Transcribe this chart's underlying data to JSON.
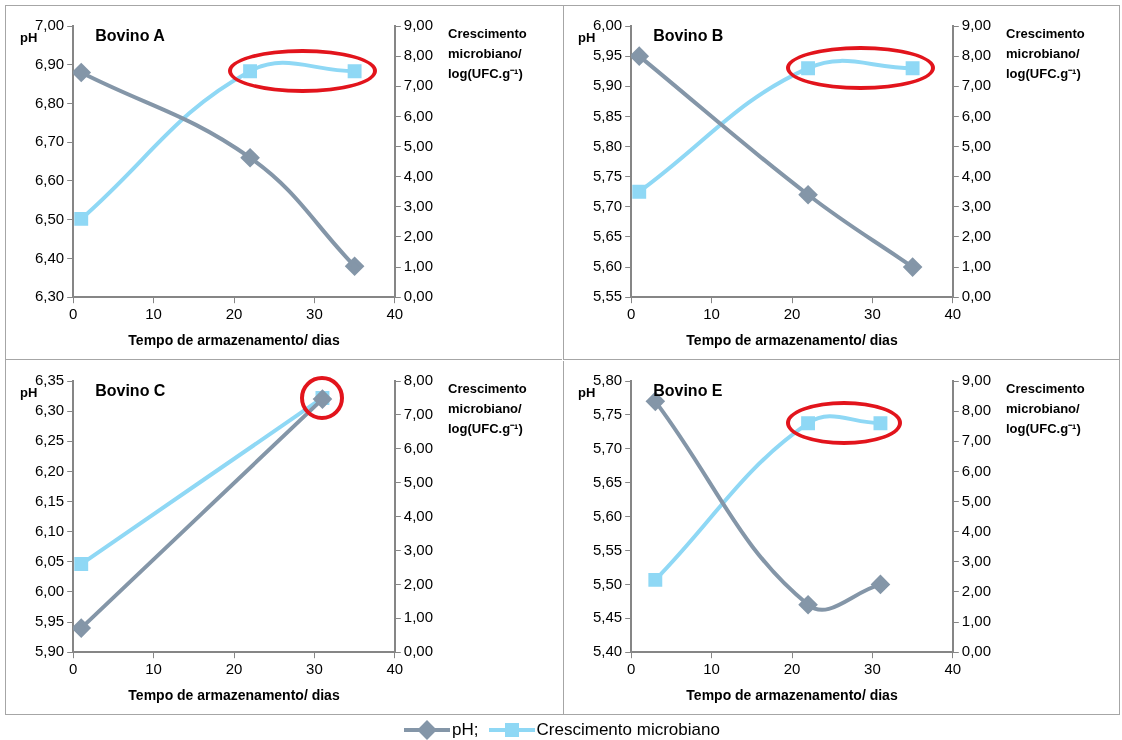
{
  "chart_data": [
    {
      "type": "line",
      "title": "Bovino A",
      "xlabel": "Tempo de armazenamento/ dias",
      "ylabel": "pH",
      "y2label": "Crescimento microbiano/ log(UFC.g⁻¹)",
      "xlim": [
        0,
        40
      ],
      "xticks": [
        0,
        10,
        20,
        30,
        40
      ],
      "ylim": [
        6.3,
        7.0
      ],
      "yticks": [
        {
          "value": 6.3,
          "label": "6,30"
        },
        {
          "value": 6.4,
          "label": "6,40"
        },
        {
          "value": 6.5,
          "label": "6,50"
        },
        {
          "value": 6.6,
          "label": "6,60"
        },
        {
          "value": 6.7,
          "label": "6,70"
        },
        {
          "value": 6.8,
          "label": "6,80"
        },
        {
          "value": 6.9,
          "label": "6,90"
        },
        {
          "value": 7.0,
          "label": "7,00"
        }
      ],
      "y2lim": [
        0,
        9
      ],
      "y2ticks": [
        {
          "value": 0,
          "label": "0,00"
        },
        {
          "value": 1,
          "label": "1,00"
        },
        {
          "value": 2,
          "label": "2,00"
        },
        {
          "value": 3,
          "label": "3,00"
        },
        {
          "value": 4,
          "label": "4,00"
        },
        {
          "value": 5,
          "label": "5,00"
        },
        {
          "value": 6,
          "label": "6,00"
        },
        {
          "value": 7,
          "label": "7,00"
        },
        {
          "value": 8,
          "label": "8,00"
        },
        {
          "value": 9,
          "label": "9,00"
        }
      ],
      "grid": false,
      "legend": "bottom",
      "series": [
        {
          "name": "pH;",
          "color": "#8496a8",
          "marker": "diamond",
          "x": [
            1,
            22,
            35
          ],
          "values": [
            6.88,
            6.66,
            6.38
          ]
        },
        {
          "name": "Crescimento microbiano",
          "color": "#8fd8f5",
          "marker": "square",
          "axis": "y2",
          "x": [
            1,
            22,
            35
          ],
          "values": [
            2.6,
            7.5,
            7.5
          ]
        }
      ]
    },
    {
      "type": "line",
      "title": "Bovino B",
      "xlabel": "Tempo de armazenamento/ dias",
      "ylabel": "pH",
      "y2label": "Crescimento microbiano/ log(UFC.g⁻¹)",
      "xlim": [
        0,
        40
      ],
      "xticks": [
        0,
        10,
        20,
        30,
        40
      ],
      "ylim": [
        5.55,
        6.0
      ],
      "yticks": [
        {
          "value": 5.55,
          "label": "5,55"
        },
        {
          "value": 5.6,
          "label": "5,60"
        },
        {
          "value": 5.65,
          "label": "5,65"
        },
        {
          "value": 5.7,
          "label": "5,70"
        },
        {
          "value": 5.75,
          "label": "5,75"
        },
        {
          "value": 5.8,
          "label": "5,80"
        },
        {
          "value": 5.85,
          "label": "5,85"
        },
        {
          "value": 5.9,
          "label": "5,90"
        },
        {
          "value": 5.95,
          "label": "5,95"
        },
        {
          "value": 6.0,
          "label": "6,00"
        }
      ],
      "y2lim": [
        0,
        9
      ],
      "y2ticks": [
        {
          "value": 0,
          "label": "0,00"
        },
        {
          "value": 1,
          "label": "1,00"
        },
        {
          "value": 2,
          "label": "2,00"
        },
        {
          "value": 3,
          "label": "3,00"
        },
        {
          "value": 4,
          "label": "4,00"
        },
        {
          "value": 5,
          "label": "5,00"
        },
        {
          "value": 6,
          "label": "6,00"
        },
        {
          "value": 7,
          "label": "7,00"
        },
        {
          "value": 8,
          "label": "8,00"
        },
        {
          "value": 9,
          "label": "9,00"
        }
      ],
      "grid": false,
      "series": [
        {
          "color": "#8496a8",
          "marker": "diamond",
          "x": [
            1,
            22,
            35
          ],
          "values": [
            5.95,
            5.72,
            5.6
          ]
        },
        {
          "color": "#8fd8f5",
          "marker": "square",
          "axis": "y2",
          "x": [
            1,
            22,
            35
          ],
          "values": [
            3.5,
            7.6,
            7.6
          ]
        }
      ]
    },
    {
      "type": "line",
      "title": "Bovino C",
      "xlabel": "Tempo de armazenamento/ dias",
      "ylabel": "pH",
      "y2label": "Crescimento microbiano/ log(UFC.g⁻¹)",
      "xlim": [
        0,
        40
      ],
      "xticks": [
        0,
        10,
        20,
        30,
        40
      ],
      "ylim": [
        5.9,
        6.35
      ],
      "yticks": [
        {
          "value": 5.9,
          "label": "5,90"
        },
        {
          "value": 5.95,
          "label": "5,95"
        },
        {
          "value": 6.0,
          "label": "6,00"
        },
        {
          "value": 6.05,
          "label": "6,05"
        },
        {
          "value": 6.1,
          "label": "6,10"
        },
        {
          "value": 6.15,
          "label": "6,15"
        },
        {
          "value": 6.2,
          "label": "6,20"
        },
        {
          "value": 6.25,
          "label": "6,25"
        },
        {
          "value": 6.3,
          "label": "6,30"
        },
        {
          "value": 6.35,
          "label": "6,35"
        }
      ],
      "y2lim": [
        0,
        8
      ],
      "y2ticks": [
        {
          "value": 0,
          "label": "0,00"
        },
        {
          "value": 1,
          "label": "1,00"
        },
        {
          "value": 2,
          "label": "2,00"
        },
        {
          "value": 3,
          "label": "3,00"
        },
        {
          "value": 4,
          "label": "4,00"
        },
        {
          "value": 5,
          "label": "5,00"
        },
        {
          "value": 6,
          "label": "6,00"
        },
        {
          "value": 7,
          "label": "7,00"
        },
        {
          "value": 8,
          "label": "8,00"
        }
      ],
      "grid": false,
      "series": [
        {
          "color": "#8496a8",
          "marker": "diamond",
          "x": [
            1,
            31
          ],
          "values": [
            5.94,
            6.32
          ]
        },
        {
          "color": "#8fd8f5",
          "marker": "square",
          "axis": "y2",
          "x": [
            1,
            31
          ],
          "values": [
            2.6,
            7.5
          ]
        }
      ]
    },
    {
      "type": "line",
      "title": "Bovino E",
      "xlabel": "Tempo de armazenamento/ dias",
      "ylabel": "pH",
      "y2label": "Crescimento microbiano/ log(UFC.g⁻¹)",
      "xlim": [
        0,
        40
      ],
      "xticks": [
        0,
        10,
        20,
        30,
        40
      ],
      "ylim": [
        5.4,
        5.8
      ],
      "yticks": [
        {
          "value": 5.4,
          "label": "5,40"
        },
        {
          "value": 5.45,
          "label": "5,45"
        },
        {
          "value": 5.5,
          "label": "5,50"
        },
        {
          "value": 5.55,
          "label": "5,55"
        },
        {
          "value": 5.6,
          "label": "5,60"
        },
        {
          "value": 5.65,
          "label": "5,65"
        },
        {
          "value": 5.7,
          "label": "5,70"
        },
        {
          "value": 5.75,
          "label": "5,75"
        },
        {
          "value": 5.8,
          "label": "5,80"
        }
      ],
      "y2lim": [
        0,
        9
      ],
      "y2ticks": [
        {
          "value": 0,
          "label": "0,00"
        },
        {
          "value": 1,
          "label": "1,00"
        },
        {
          "value": 2,
          "label": "2,00"
        },
        {
          "value": 3,
          "label": "3,00"
        },
        {
          "value": 4,
          "label": "4,00"
        },
        {
          "value": 5,
          "label": "5,00"
        },
        {
          "value": 6,
          "label": "6,00"
        },
        {
          "value": 7,
          "label": "7,00"
        },
        {
          "value": 8,
          "label": "8,00"
        },
        {
          "value": 9,
          "label": "9,00"
        }
      ],
      "grid": false,
      "series": [
        {
          "color": "#8496a8",
          "marker": "diamond",
          "x": [
            3,
            22,
            31
          ],
          "values": [
            5.77,
            5.47,
            5.5
          ]
        },
        {
          "color": "#8fd8f5",
          "marker": "square",
          "axis": "y2",
          "x": [
            3,
            22,
            31
          ],
          "values": [
            2.4,
            7.6,
            7.6
          ]
        }
      ]
    }
  ]
}
